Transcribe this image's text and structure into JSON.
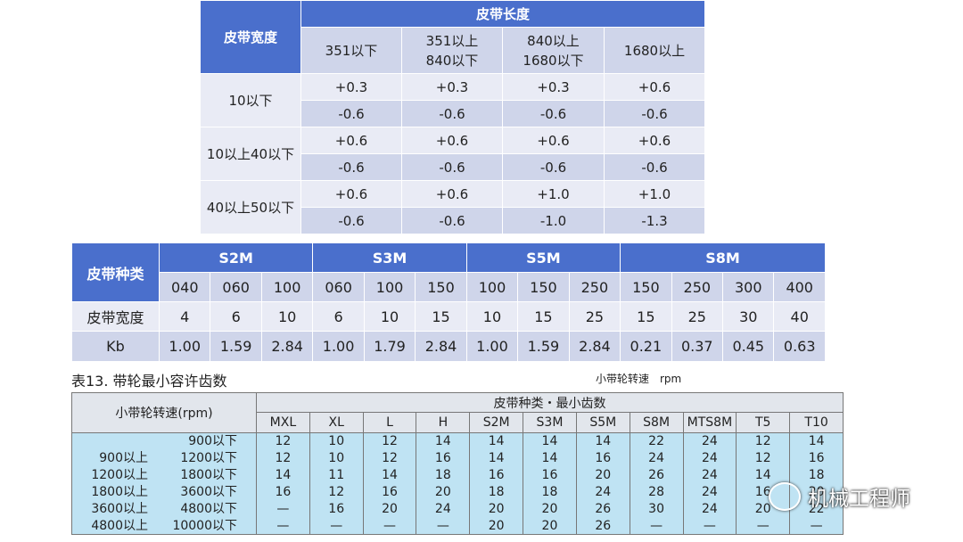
{
  "table1": {
    "header": {
      "width": "皮带宽度",
      "length": "皮带长度",
      "ranges": [
        "351以下",
        "351以上\n840以下",
        "840以上\n1680以下",
        "1680以上"
      ]
    },
    "rows": [
      {
        "width": "10以下",
        "plus": [
          "+0.3",
          "+0.3",
          "+0.3",
          "+0.6"
        ],
        "minus": [
          "-0.6",
          "-0.6",
          "-0.6",
          "-0.6"
        ]
      },
      {
        "width": "10以上40以下",
        "plus": [
          "+0.6",
          "+0.6",
          "+0.6",
          "+0.6"
        ],
        "minus": [
          "-0.6",
          "-0.6",
          "-0.6",
          "-0.6"
        ]
      },
      {
        "width": "40以上50以下",
        "plus": [
          "+0.6",
          "+0.6",
          "+1.0",
          "+1.0"
        ],
        "minus": [
          "-0.6",
          "-0.6",
          "-1.0",
          "-1.3"
        ]
      }
    ]
  },
  "table2": {
    "header": "皮带种类",
    "groups": [
      {
        "name": "S2M",
        "codes": [
          "040",
          "060",
          "100"
        ]
      },
      {
        "name": "S3M",
        "codes": [
          "060",
          "100",
          "150"
        ]
      },
      {
        "name": "S5M",
        "codes": [
          "100",
          "150",
          "250"
        ]
      },
      {
        "name": "S8M",
        "codes": [
          "150",
          "250",
          "300",
          "400"
        ]
      }
    ],
    "width_label": "皮带宽度",
    "widths": [
      "4",
      "6",
      "10",
      "6",
      "10",
      "15",
      "10",
      "15",
      "25",
      "15",
      "25",
      "30",
      "40"
    ],
    "kb_label": "Kb",
    "kb": [
      "1.00",
      "1.59",
      "2.84",
      "1.00",
      "1.79",
      "2.84",
      "1.00",
      "1.59",
      "2.84",
      "0.21",
      "0.37",
      "0.45",
      "0.63"
    ]
  },
  "caption": "表13. 带轮最小容许齿数",
  "unit_note": "小带轮转速　rpm",
  "table3": {
    "speed_header": "小带轮转速(rpm)",
    "type_header": "皮带种类・最小齿数",
    "types": [
      "MXL",
      "XL",
      "L",
      "H",
      "S2M",
      "S3M",
      "S5M",
      "S8M",
      "MTS8M",
      "T5",
      "T10"
    ],
    "rows": [
      {
        "to": "900以下",
        "values": [
          "12",
          "10",
          "12",
          "14",
          "14",
          "14",
          "14",
          "22",
          "24",
          "12",
          "14"
        ]
      },
      {
        "from": "900以上",
        "to": "1200以下",
        "values": [
          "12",
          "10",
          "12",
          "16",
          "14",
          "14",
          "16",
          "24",
          "24",
          "12",
          "16"
        ]
      },
      {
        "from": "1200以上",
        "to": "1800以下",
        "values": [
          "14",
          "11",
          "14",
          "18",
          "16",
          "16",
          "20",
          "26",
          "24",
          "14",
          "18"
        ]
      },
      {
        "from": "1800以上",
        "to": "3600以下",
        "values": [
          "16",
          "12",
          "16",
          "20",
          "18",
          "18",
          "24",
          "28",
          "24",
          "16",
          "20"
        ]
      },
      {
        "from": "3600以上",
        "to": "4800以下",
        "values": [
          "—",
          "16",
          "20",
          "24",
          "20",
          "20",
          "26",
          "30",
          "24",
          "20",
          "22"
        ]
      },
      {
        "from": "4800以上",
        "to": "10000以下",
        "values": [
          "—",
          "—",
          "—",
          "—",
          "20",
          "20",
          "26",
          "—",
          "—",
          "—",
          "—"
        ]
      }
    ]
  },
  "watermark": "机械工程师"
}
